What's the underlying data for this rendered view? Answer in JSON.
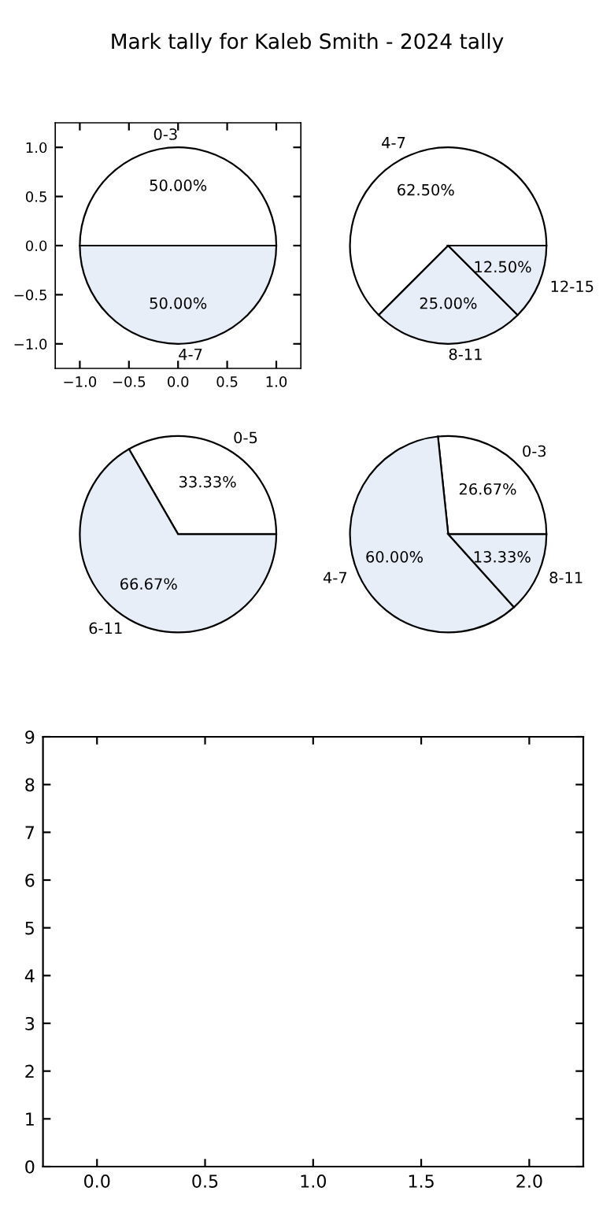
{
  "chart_data": [
    {
      "type": "scatter",
      "title": "Mark tally for Kaleb Smith - 2024 tally",
      "xlim": [
        -1.25,
        1.25
      ],
      "ylim": [
        -1.25,
        1.25
      ],
      "xticks": [
        {
          "value": -1.0,
          "label": "−1.0"
        },
        {
          "value": -0.5,
          "label": "−0.5"
        },
        {
          "value": 0,
          "label": "0.0"
        },
        {
          "value": 0.5,
          "label": "0.5"
        },
        {
          "value": 1,
          "label": "1.0"
        }
      ],
      "yticks": [
        {
          "value": -1.0,
          "label": "−1.0"
        },
        {
          "value": -0.5,
          "label": "−0.5"
        },
        {
          "value": 0,
          "label": "0.0"
        },
        {
          "value": 0.5,
          "label": "0.5"
        },
        {
          "value": 1,
          "label": "1.0"
        }
      ]
    },
    {
      "type": "pie",
      "categories": [
        "0-3",
        "4-7"
      ],
      "values": [
        50.0,
        50.0
      ],
      "value_labels": [
        "50.00%",
        "50.00%"
      ],
      "colors": [
        "#ffffff",
        "#e8eef8"
      ],
      "tick_labels": false
    },
    {
      "type": "pie",
      "categories": [
        "4-7",
        "8-11",
        "12-15"
      ],
      "values": [
        62.5,
        25.0,
        12.5
      ],
      "value_labels": [
        "62.50%",
        "25.00%",
        "12.50%"
      ],
      "colors": [
        "#ffffff",
        "#e8eef8",
        "#e8eef8"
      ],
      "tick_labels": false
    },
    {
      "type": "pie",
      "categories": [
        "0-5",
        "6-11"
      ],
      "values": [
        33.33,
        66.67
      ],
      "value_labels": [
        "33.33%",
        "66.67%"
      ],
      "colors": [
        "#ffffff",
        "#e8eef8"
      ],
      "tick_labels": false
    },
    {
      "type": "pie",
      "categories": [
        "0-3",
        "4-7",
        "8-11"
      ],
      "values": [
        26.67,
        60.0,
        13.33
      ],
      "value_labels": [
        "26.67%",
        "60.00%",
        "13.33%"
      ],
      "colors": [
        "#ffffff",
        "#e8eef8",
        "#e8eef8"
      ],
      "tick_labels": false
    },
    {
      "type": "scatter",
      "xlim": [
        -0.25,
        2.25
      ],
      "ylim": [
        0,
        9
      ],
      "xticks": [
        {
          "value": 0,
          "label": "0.0"
        },
        0.5,
        {
          "value": 1,
          "label": "1.0"
        },
        1.5,
        {
          "value": 2,
          "label": "2.0"
        }
      ],
      "yticks": [
        0,
        1,
        2,
        3,
        4,
        5,
        6,
        7,
        8,
        9
      ]
    }
  ]
}
